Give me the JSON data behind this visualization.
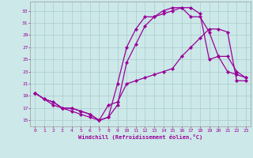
{
  "xlabel": "Windchill (Refroidissement éolien,°C)",
  "xlim": [
    -0.5,
    23.5
  ],
  "ylim": [
    14,
    34.5
  ],
  "yticks": [
    15,
    17,
    19,
    21,
    23,
    25,
    27,
    29,
    31,
    33
  ],
  "xticks": [
    0,
    1,
    2,
    3,
    4,
    5,
    6,
    7,
    8,
    9,
    10,
    11,
    12,
    13,
    14,
    15,
    16,
    17,
    18,
    19,
    20,
    21,
    22,
    23
  ],
  "bg_color": "#cce8e8",
  "grid_color": "#aacccc",
  "line_color": "#990099",
  "marker": "D",
  "markersize": 2.2,
  "linewidth": 0.9,
  "line1_x": [
    0,
    1,
    2,
    3,
    4,
    5,
    6,
    7,
    8,
    9,
    10,
    11,
    12,
    13,
    14,
    15,
    16,
    17,
    18,
    19,
    20,
    21,
    22,
    23
  ],
  "line1_y": [
    19.5,
    18.5,
    17.5,
    17.0,
    16.5,
    16.0,
    15.5,
    15.0,
    17.5,
    18.0,
    21.0,
    21.5,
    22.0,
    22.5,
    23.0,
    23.5,
    25.5,
    27.0,
    28.5,
    30.0,
    30.0,
    29.5,
    21.5,
    21.5
  ],
  "line2_x": [
    0,
    1,
    2,
    3,
    4,
    5,
    6,
    7,
    8,
    9,
    10,
    11,
    12,
    13,
    14,
    15,
    16,
    17,
    18,
    19,
    20,
    21,
    22,
    23
  ],
  "line2_y": [
    19.5,
    18.5,
    18.0,
    17.0,
    17.0,
    16.5,
    16.0,
    15.0,
    15.5,
    21.0,
    27.0,
    30.0,
    32.0,
    32.0,
    32.5,
    33.0,
    33.5,
    33.5,
    32.5,
    25.0,
    25.5,
    23.0,
    22.5,
    22.0
  ],
  "line3_x": [
    0,
    1,
    2,
    3,
    4,
    5,
    6,
    7,
    8,
    9,
    10,
    11,
    12,
    13,
    14,
    15,
    16,
    17,
    18,
    19,
    20,
    21,
    22,
    23
  ],
  "line3_y": [
    19.5,
    18.5,
    18.0,
    17.0,
    17.0,
    16.5,
    16.0,
    15.0,
    15.5,
    17.5,
    24.5,
    27.5,
    30.5,
    32.0,
    33.0,
    33.5,
    33.5,
    32.0,
    32.0,
    29.5,
    25.5,
    25.5,
    23.0,
    22.0
  ]
}
